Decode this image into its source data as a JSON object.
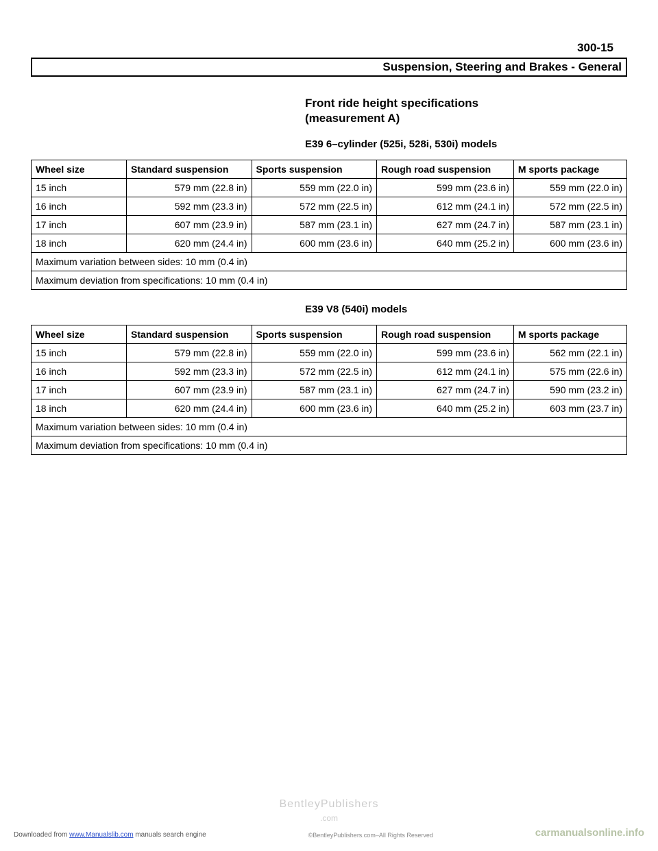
{
  "pageNumber": "300-15",
  "headerTitle": "Suspension, Steering and Brakes - General",
  "sectionTitle1": "Front ride height specifications",
  "sectionTitle2": "(measurement A)",
  "sub1": "E39 6–cylinder (525i, 528i, 530i) models",
  "sub2": "E39 V8 (540i) models",
  "headers": {
    "c1": "Wheel size",
    "c2": "Standard suspension",
    "c3": "Sports suspension",
    "c4": "Rough road suspension",
    "c5": "M sports package"
  },
  "t1": {
    "r1": {
      "c1": "15 inch",
      "c2": "579 mm (22.8 in)",
      "c3": "559 mm (22.0 in)",
      "c4": "599 mm (23.6 in)",
      "c5": "559 mm (22.0 in)"
    },
    "r2": {
      "c1": "16 inch",
      "c2": "592 mm (23.3 in)",
      "c3": "572 mm (22.5 in)",
      "c4": "612 mm (24.1 in)",
      "c5": "572 mm (22.5 in)"
    },
    "r3": {
      "c1": "17 inch",
      "c2": "607 mm (23.9 in)",
      "c3": "587 mm (23.1 in)",
      "c4": "627 mm (24.7 in)",
      "c5": "587 mm (23.1 in)"
    },
    "r4": {
      "c1": "18 inch",
      "c2": "620 mm (24.4 in)",
      "c3": "600 mm (23.6 in)",
      "c4": "640 mm (25.2 in)",
      "c5": "600 mm (23.6 in)"
    },
    "note1": "Maximum variation between sides: 10 mm (0.4 in)",
    "note2": "Maximum deviation from specifications: 10 mm (0.4 in)"
  },
  "t2": {
    "r1": {
      "c1": "15 inch",
      "c2": "579 mm (22.8 in)",
      "c3": "559 mm (22.0 in)",
      "c4": "599 mm (23.6 in)",
      "c5": "562 mm (22.1 in)"
    },
    "r2": {
      "c1": "16 inch",
      "c2": "592 mm (23.3 in)",
      "c3": "572 mm (22.5 in)",
      "c4": "612 mm (24.1 in)",
      "c5": "575 mm (22.6 in)"
    },
    "r3": {
      "c1": "17 inch",
      "c2": "607 mm (23.9 in)",
      "c3": "587 mm (23.1 in)",
      "c4": "627 mm (24.7 in)",
      "c5": "590 mm (23.2 in)"
    },
    "r4": {
      "c1": "18 inch",
      "c2": "620 mm (24.4 in)",
      "c3": "600 mm (23.6 in)",
      "c4": "640 mm (25.2 in)",
      "c5": "603 mm (23.7 in)"
    },
    "note1": "Maximum variation between sides: 10 mm (0.4 in)",
    "note2": "Maximum deviation from specifications: 10 mm (0.4 in)"
  },
  "footer": {
    "wm1": "BentleyPublishers",
    "wm2": ".com",
    "leftPre": "Downloaded from ",
    "leftLink": "www.Manualslib.com",
    "leftPost": " manuals search engine",
    "mid": "©BentleyPublishers.com–All Rights Reserved",
    "right": "carmanualsonline.info"
  }
}
